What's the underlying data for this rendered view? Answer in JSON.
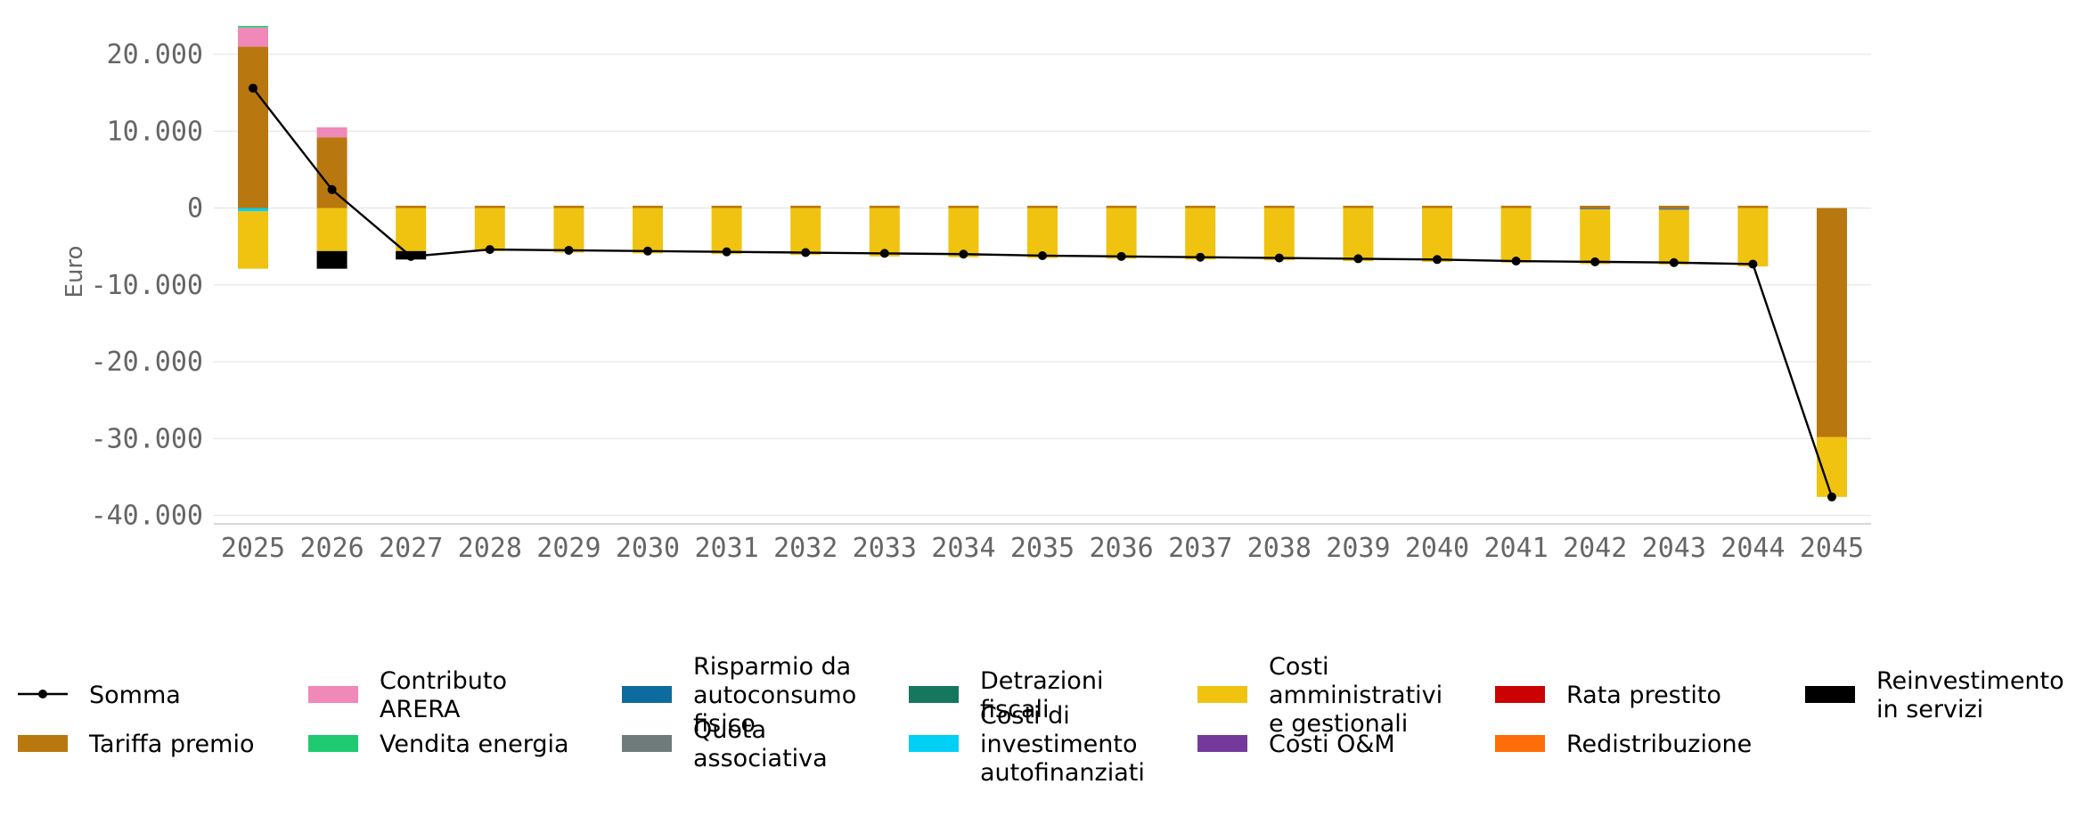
{
  "chart_data": {
    "type": "bar",
    "stacked": true,
    "ylabel": "Euro",
    "ylim": [
      -41000,
      24000
    ],
    "yticks": [
      20000,
      10000,
      0,
      -10000,
      -20000,
      -30000,
      -40000
    ],
    "ytick_labels": [
      "20.000",
      "10.000",
      "0",
      "-10.000",
      "-20.000",
      "-30.000",
      "-40.000"
    ],
    "grid": true,
    "legend_position": "bottom",
    "categories": [
      "2025",
      "2026",
      "2027",
      "2028",
      "2029",
      "2030",
      "2031",
      "2032",
      "2033",
      "2034",
      "2035",
      "2036",
      "2037",
      "2038",
      "2039",
      "2040",
      "2041",
      "2042",
      "2043",
      "2044",
      "2045"
    ],
    "series": [
      {
        "name": "Tariffa premio",
        "color": "#b8770f",
        "values": [
          21000,
          9200,
          300,
          300,
          300,
          300,
          300,
          300,
          300,
          300,
          300,
          300,
          300,
          300,
          300,
          300,
          300,
          300,
          300,
          300,
          -29800
        ]
      },
      {
        "name": "Contributo ARERA",
        "color": "#f088b8",
        "values": [
          2500,
          1300,
          0,
          0,
          0,
          0,
          0,
          0,
          0,
          0,
          0,
          0,
          0,
          0,
          0,
          0,
          0,
          0,
          0,
          0,
          0
        ]
      },
      {
        "name": "Vendita energia",
        "color": "#1fca72",
        "values": [
          200,
          0,
          0,
          0,
          0,
          0,
          0,
          0,
          0,
          0,
          0,
          0,
          0,
          0,
          0,
          0,
          0,
          0,
          0,
          0,
          0
        ]
      },
      {
        "name": "Risparmio da autoconsumo fisico",
        "color": "#0e6b9e",
        "values": [
          0,
          0,
          0,
          0,
          0,
          0,
          0,
          0,
          0,
          0,
          0,
          0,
          0,
          0,
          0,
          0,
          0,
          0,
          0,
          0,
          0
        ]
      },
      {
        "name": "Quota associativa",
        "color": "#6e7b7a",
        "values": [
          0,
          0,
          0,
          0,
          0,
          0,
          0,
          0,
          0,
          0,
          0,
          0,
          0,
          0,
          0,
          0,
          0,
          -200,
          -250,
          0,
          0
        ]
      },
      {
        "name": "Detrazioni fiscali",
        "color": "#15775e",
        "values": [
          0,
          0,
          0,
          0,
          0,
          0,
          0,
          0,
          0,
          0,
          0,
          0,
          0,
          0,
          0,
          0,
          0,
          0,
          0,
          0,
          0
        ]
      },
      {
        "name": "Costi di investimento autofinanziati",
        "color": "#00d0f5",
        "values": [
          -400,
          0,
          0,
          0,
          0,
          0,
          0,
          0,
          0,
          0,
          0,
          0,
          0,
          0,
          0,
          0,
          0,
          0,
          0,
          0,
          0
        ]
      },
      {
        "name": "Costi amministrativi e gestionali",
        "color": "#f0c311",
        "values": [
          -7500,
          -5600,
          -5600,
          -5600,
          -5800,
          -5900,
          -6000,
          -6100,
          -6300,
          -6400,
          -6500,
          -6600,
          -6700,
          -6800,
          -6900,
          -7000,
          -7100,
          -7100,
          -7100,
          -7600,
          -7800
        ]
      },
      {
        "name": "Costi O&M",
        "color": "#74399a",
        "values": [
          0,
          0,
          0,
          0,
          0,
          0,
          0,
          0,
          0,
          0,
          0,
          0,
          0,
          0,
          0,
          0,
          0,
          0,
          0,
          0,
          0
        ]
      },
      {
        "name": "Rata prestito",
        "color": "#cc0202",
        "values": [
          0,
          0,
          0,
          0,
          0,
          0,
          0,
          0,
          0,
          0,
          0,
          0,
          0,
          0,
          0,
          0,
          0,
          0,
          0,
          0,
          0
        ]
      },
      {
        "name": "Redistribuzione",
        "color": "#ff6d08",
        "values": [
          0,
          0,
          0,
          0,
          0,
          0,
          0,
          0,
          0,
          0,
          0,
          0,
          0,
          0,
          0,
          0,
          0,
          0,
          0,
          0,
          0
        ]
      },
      {
        "name": "Reinvestimento in servizi",
        "color": "#000000",
        "values": [
          0,
          -2300,
          -1100,
          0,
          0,
          0,
          0,
          0,
          0,
          0,
          0,
          0,
          0,
          0,
          0,
          0,
          0,
          0,
          0,
          0,
          0
        ]
      }
    ],
    "line": {
      "name": "Somma",
      "color": "#000000",
      "values": [
        15600,
        2400,
        -6300,
        -5400,
        -5500,
        -5600,
        -5700,
        -5800,
        -5900,
        -6000,
        -6200,
        -6300,
        -6400,
        -6500,
        -6600,
        -6700,
        -6900,
        -7000,
        -7100,
        -7300,
        -37600
      ]
    },
    "legend": [
      {
        "col": 0,
        "entries": [
          {
            "label": "Somma",
            "kind": "line"
          },
          {
            "label": "Tariffa premio",
            "kind": "patch",
            "series": 0
          }
        ]
      },
      {
        "col": 1,
        "entries": [
          {
            "label": "Contributo\nARERA",
            "kind": "patch",
            "series": 1
          },
          {
            "label": "Vendita energia",
            "kind": "patch",
            "series": 2
          }
        ]
      },
      {
        "col": 2,
        "entries": [
          {
            "label": "Risparmio da\nautoconsumo\nfisico",
            "kind": "patch",
            "series": 3
          },
          {
            "label": "Quota\nassociativa",
            "kind": "patch",
            "series": 4
          }
        ]
      },
      {
        "col": 3,
        "entries": [
          {
            "label": "Detrazioni\nfiscali",
            "kind": "patch",
            "series": 5
          },
          {
            "label": "Costi di\ninvestimento\nautofinanziati",
            "kind": "patch",
            "series": 6
          }
        ]
      },
      {
        "col": 4,
        "entries": [
          {
            "label": "Costi\namministrativi\ne gestionali",
            "kind": "patch",
            "series": 7
          },
          {
            "label": "Costi O&M",
            "kind": "patch",
            "series": 8
          }
        ]
      },
      {
        "col": 5,
        "entries": [
          {
            "label": "Rata prestito",
            "kind": "patch",
            "series": 9
          },
          {
            "label": "Redistribuzione",
            "kind": "patch",
            "series": 10
          }
        ]
      },
      {
        "col": 6,
        "entries": [
          {
            "label": "Reinvestimento\nin servizi",
            "kind": "patch",
            "series": 11
          }
        ]
      }
    ]
  }
}
